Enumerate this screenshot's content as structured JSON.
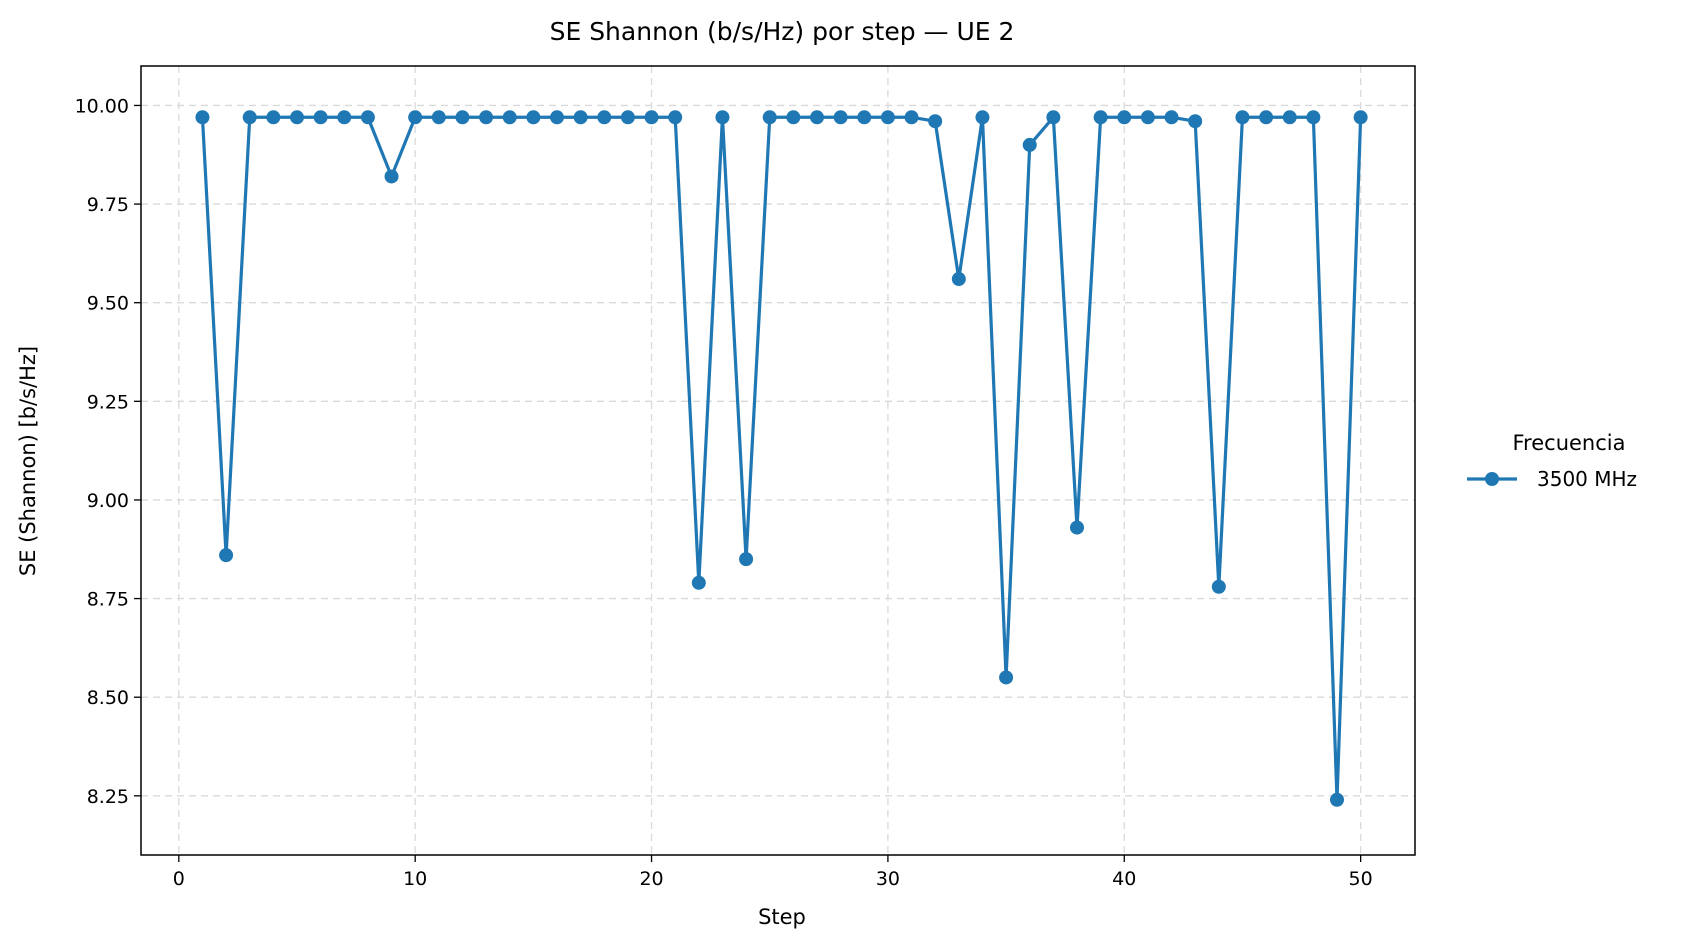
{
  "chart_data": {
    "type": "line",
    "title": "SE Shannon (b/s/Hz) por step — UE 2",
    "xlabel": "Step",
    "ylabel": "SE (Shannon) [b/s/Hz]",
    "xlim": [
      -1.6,
      52.3
    ],
    "ylim": [
      8.1,
      10.1
    ],
    "xticks": [
      0,
      10,
      20,
      30,
      40,
      50
    ],
    "xtick_labels": [
      "0",
      "10",
      "20",
      "30",
      "40",
      "50"
    ],
    "yticks": [
      8.25,
      8.5,
      8.75,
      9.0,
      9.25,
      9.5,
      9.75,
      10.0
    ],
    "ytick_labels": [
      "8.25",
      "8.50",
      "8.75",
      "9.00",
      "9.25",
      "9.50",
      "9.75",
      "10.00"
    ],
    "grid": true,
    "legend": {
      "title": "Frecuencia",
      "placement": "right-outside"
    },
    "series": [
      {
        "name": "3500 MHz",
        "color": "#1f77b4",
        "x": [
          1,
          2,
          3,
          4,
          5,
          6,
          7,
          8,
          9,
          10,
          11,
          12,
          13,
          14,
          15,
          16,
          17,
          18,
          19,
          20,
          21,
          22,
          23,
          24,
          25,
          26,
          27,
          28,
          29,
          30,
          31,
          32,
          33,
          34,
          35,
          36,
          37,
          38,
          39,
          40,
          41,
          42,
          43,
          44,
          45,
          46,
          47,
          48,
          49,
          50
        ],
        "y": [
          9.97,
          8.86,
          9.97,
          9.97,
          9.97,
          9.97,
          9.97,
          9.97,
          9.82,
          9.97,
          9.97,
          9.97,
          9.97,
          9.97,
          9.97,
          9.97,
          9.97,
          9.97,
          9.97,
          9.97,
          9.97,
          8.79,
          9.97,
          8.85,
          9.97,
          9.97,
          9.97,
          9.97,
          9.97,
          9.97,
          9.97,
          9.96,
          9.56,
          9.97,
          8.55,
          9.9,
          9.97,
          8.93,
          9.97,
          9.97,
          9.97,
          9.97,
          9.96,
          8.78,
          9.97,
          9.97,
          9.97,
          9.97,
          8.24,
          9.97
        ]
      }
    ]
  }
}
